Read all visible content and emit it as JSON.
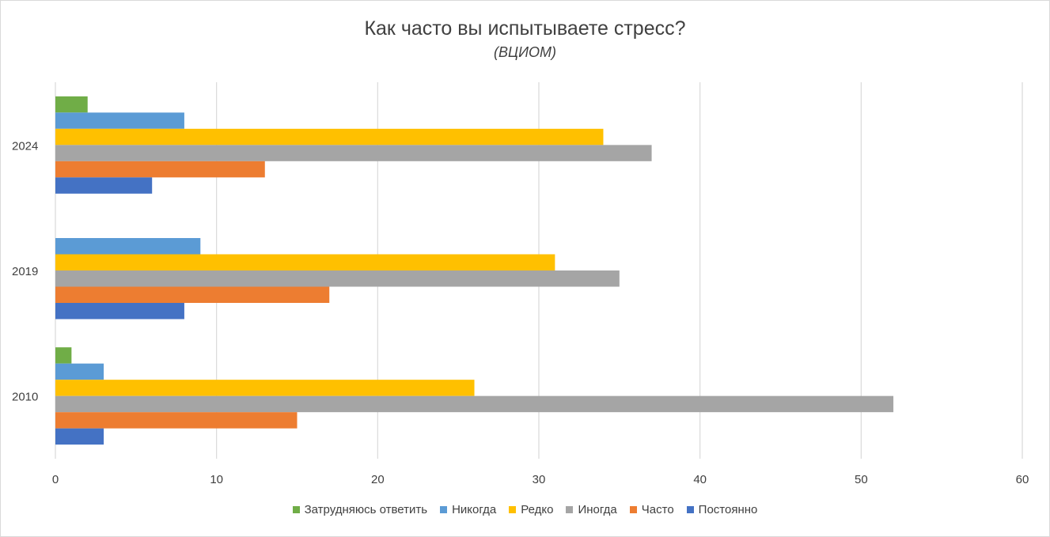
{
  "chart_data": {
    "type": "bar",
    "orientation": "horizontal",
    "title": "Как часто вы испытываете стресс?",
    "subtitle": "(ВЦИОМ)",
    "categories": [
      "2010",
      "2019",
      "2024"
    ],
    "xlim": [
      0,
      60
    ],
    "xticks": [
      "0",
      "10",
      "20",
      "30",
      "40",
      "50",
      "60"
    ],
    "grid": true,
    "legend_position": "bottom",
    "series": [
      {
        "name": "Затрудняюсь ответить",
        "color": "#70ad47",
        "values": [
          1,
          null,
          2
        ]
      },
      {
        "name": "Никогда",
        "color": "#5b9bd5",
        "values": [
          3,
          9,
          8
        ]
      },
      {
        "name": "Редко",
        "color": "#ffc000",
        "values": [
          26,
          31,
          34
        ]
      },
      {
        "name": "Иногда",
        "color": "#a5a5a5",
        "values": [
          52,
          35,
          37
        ]
      },
      {
        "name": "Часто",
        "color": "#ed7d31",
        "values": [
          15,
          17,
          13
        ]
      },
      {
        "name": "Постоянно",
        "color": "#4472c4",
        "values": [
          3,
          8,
          6
        ]
      }
    ]
  }
}
